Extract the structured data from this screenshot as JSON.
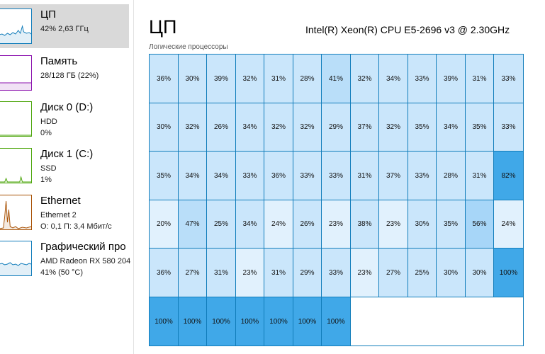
{
  "sidebar": {
    "items": [
      {
        "title": "ЦП",
        "line1": "42% 2,63 ГГц",
        "line2": "",
        "color": "#117dbb",
        "selected": true
      },
      {
        "title": "Память",
        "line1": "28/128 ГБ (22%)",
        "line2": "",
        "color": "#8b12ae",
        "selected": false
      },
      {
        "title": "Диск 0 (D:)",
        "line1": "HDD",
        "line2": "0%",
        "color": "#4da60c",
        "selected": false
      },
      {
        "title": "Диск 1 (C:)",
        "line1": "SSD",
        "line2": "1%",
        "color": "#4da60c",
        "selected": false
      },
      {
        "title": "Ethernet",
        "line1": "Ethernet 2",
        "line2": "О: 0,1 П: 3,4 Мбит/с",
        "color": "#a74f01",
        "selected": false
      },
      {
        "title": "Графический про",
        "line1": "AMD Radeon RX 580 204",
        "line2": "41% (50 °C)",
        "color": "#117dbb",
        "selected": false
      }
    ]
  },
  "main": {
    "title": "ЦП",
    "cpu_model": "Intel(R) Xeon(R) CPU E5-2696 v3 @ 2.30GHz",
    "grid_label": "Логические процессоры"
  },
  "processors": {
    "columns": 13,
    "accent": "#117dbb",
    "rows": [
      [
        36,
        30,
        39,
        32,
        31,
        28,
        41,
        32,
        34,
        33,
        39,
        31,
        33
      ],
      [
        30,
        32,
        26,
        34,
        32,
        32,
        29,
        37,
        32,
        35,
        34,
        35,
        33
      ],
      [
        35,
        34,
        34,
        33,
        36,
        33,
        33,
        31,
        37,
        33,
        28,
        31,
        82
      ],
      [
        20,
        47,
        25,
        34,
        24,
        26,
        23,
        38,
        23,
        30,
        35,
        56,
        24
      ],
      [
        36,
        27,
        31,
        23,
        31,
        29,
        33,
        23,
        27,
        25,
        30,
        30,
        100
      ],
      [
        100,
        100,
        100,
        100,
        100,
        100,
        100
      ]
    ]
  }
}
